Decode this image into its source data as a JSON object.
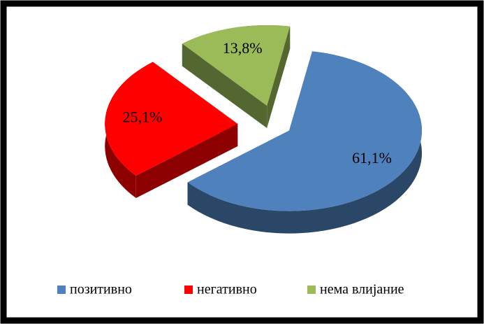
{
  "chart_data": {
    "type": "pie",
    "categories": [
      "позитивно",
      "негативно",
      "нема влијание"
    ],
    "values": [
      61.1,
      25.1,
      13.8
    ],
    "value_labels": [
      "61,1%",
      "25,1%",
      "13,8%"
    ],
    "colors": [
      "#4f81bd",
      "#ff0000",
      "#9bbb59"
    ],
    "legend": "bottom"
  }
}
